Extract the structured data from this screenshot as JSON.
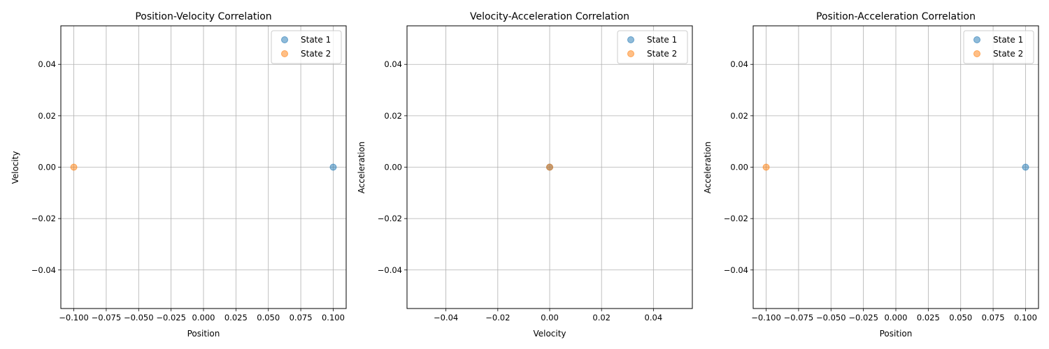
{
  "chart_data": [
    {
      "type": "scatter",
      "title": "Position-Velocity Correlation",
      "xlabel": "Position",
      "ylabel": "Velocity",
      "xlim": [
        -0.11,
        0.11
      ],
      "ylim": [
        -0.055,
        0.055
      ],
      "xticks": [
        -0.1,
        -0.075,
        -0.05,
        -0.025,
        0.0,
        0.025,
        0.05,
        0.075,
        0.1
      ],
      "xtick_labels": [
        "−0.100",
        "−0.075",
        "−0.050",
        "−0.025",
        "0.000",
        "0.025",
        "0.050",
        "0.075",
        "0.100"
      ],
      "yticks": [
        -0.04,
        -0.02,
        0.0,
        0.02,
        0.04
      ],
      "ytick_labels": [
        "−0.04",
        "−0.02",
        "0.00",
        "0.02",
        "0.04"
      ],
      "grid": true,
      "legend_position": "top-right",
      "series": [
        {
          "name": "State 1",
          "color": "#1f77b4",
          "points": [
            [
              0.1,
              0.0
            ]
          ]
        },
        {
          "name": "State 2",
          "color": "#ff7f0e",
          "points": [
            [
              -0.1,
              0.0
            ]
          ]
        }
      ]
    },
    {
      "type": "scatter",
      "title": "Velocity-Acceleration Correlation",
      "xlabel": "Velocity",
      "ylabel": "Acceleration",
      "xlim": [
        -0.055,
        0.055
      ],
      "ylim": [
        -0.055,
        0.055
      ],
      "xticks": [
        -0.04,
        -0.02,
        0.0,
        0.02,
        0.04
      ],
      "xtick_labels": [
        "−0.04",
        "−0.02",
        "0.00",
        "0.02",
        "0.04"
      ],
      "yticks": [
        -0.04,
        -0.02,
        0.0,
        0.02,
        0.04
      ],
      "ytick_labels": [
        "−0.04",
        "−0.02",
        "0.00",
        "0.02",
        "0.04"
      ],
      "grid": true,
      "legend_position": "top-right",
      "series": [
        {
          "name": "State 1",
          "color": "#1f77b4",
          "points": [
            [
              0.0,
              0.0
            ]
          ]
        },
        {
          "name": "State 2",
          "color": "#ff7f0e",
          "points": [
            [
              0.0,
              0.0
            ]
          ]
        }
      ]
    },
    {
      "type": "scatter",
      "title": "Position-Acceleration Correlation",
      "xlabel": "Position",
      "ylabel": "Acceleration",
      "xlim": [
        -0.11,
        0.11
      ],
      "ylim": [
        -0.055,
        0.055
      ],
      "xticks": [
        -0.1,
        -0.075,
        -0.05,
        -0.025,
        0.0,
        0.025,
        0.05,
        0.075,
        0.1
      ],
      "xtick_labels": [
        "−0.100",
        "−0.075",
        "−0.050",
        "−0.025",
        "0.000",
        "0.025",
        "0.050",
        "0.075",
        "0.100"
      ],
      "yticks": [
        -0.04,
        -0.02,
        0.0,
        0.02,
        0.04
      ],
      "ytick_labels": [
        "−0.04",
        "−0.02",
        "0.00",
        "0.02",
        "0.04"
      ],
      "grid": true,
      "legend_position": "top-right",
      "series": [
        {
          "name": "State 1",
          "color": "#1f77b4",
          "points": [
            [
              0.1,
              0.0
            ]
          ]
        },
        {
          "name": "State 2",
          "color": "#ff7f0e",
          "points": [
            [
              -0.1,
              0.0
            ]
          ]
        }
      ]
    }
  ]
}
